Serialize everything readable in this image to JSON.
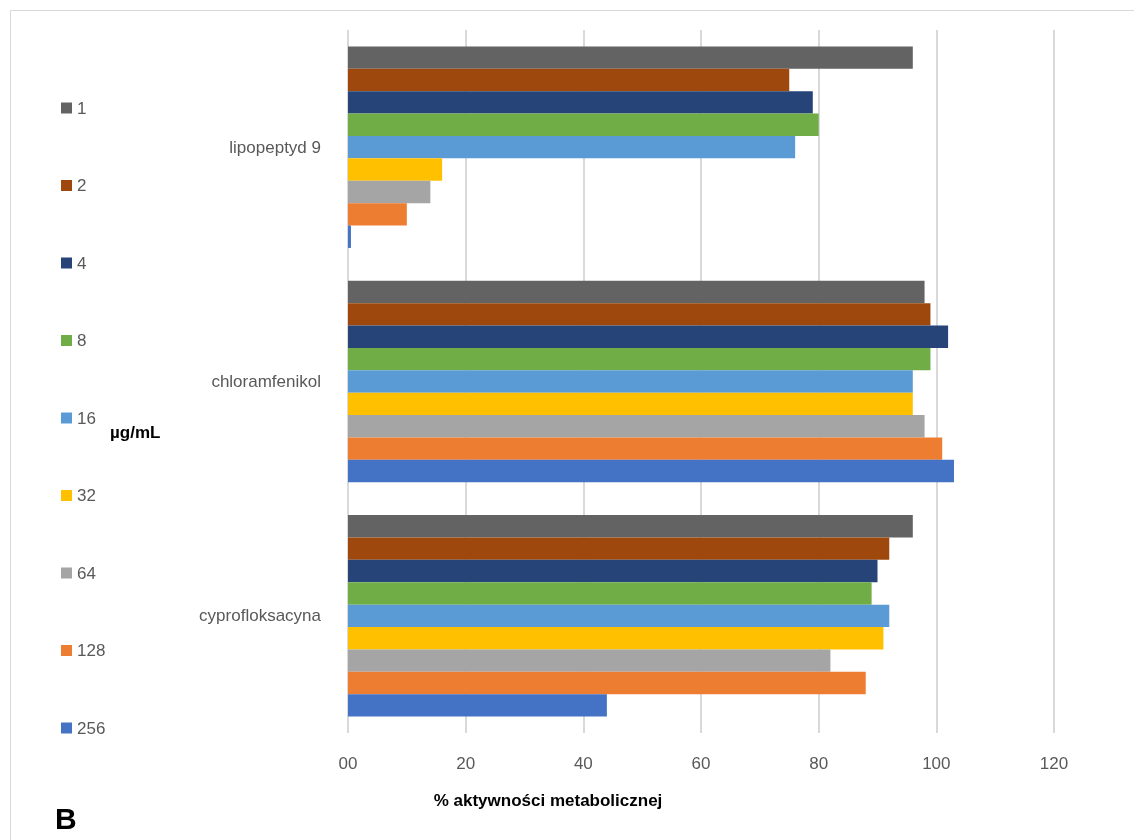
{
  "chart_data": {
    "type": "bar",
    "orientation": "horizontal",
    "categories": [
      "lipopeptyd 9",
      "chloramfenikol",
      "cyprofloksacyna"
    ],
    "series": [
      {
        "name": "1",
        "color": "#636363",
        "values": [
          96,
          98,
          96
        ]
      },
      {
        "name": "2",
        "color": "#9e480e",
        "values": [
          75,
          99,
          92
        ]
      },
      {
        "name": "4",
        "color": "#264478",
        "values": [
          79,
          102,
          90
        ]
      },
      {
        "name": "8",
        "color": "#70ad47",
        "values": [
          80,
          99,
          89
        ]
      },
      {
        "name": "16",
        "color": "#5b9bd5",
        "values": [
          76,
          96,
          92
        ]
      },
      {
        "name": "32",
        "color": "#ffc000",
        "values": [
          16,
          96,
          91
        ]
      },
      {
        "name": "64",
        "color": "#a5a5a5",
        "values": [
          14,
          98,
          82
        ]
      },
      {
        "name": "128",
        "color": "#ed7d31",
        "values": [
          10,
          101,
          88
        ]
      },
      {
        "name": "256",
        "color": "#4472c4",
        "values": [
          0.5,
          103,
          44
        ]
      }
    ],
    "xlim": [
      0,
      120
    ],
    "xticks": [
      {
        "value": 0,
        "label": "00"
      },
      20,
      40,
      60,
      80,
      100,
      120
    ],
    "xlabel": "% aktywności metabolicznej",
    "legend_title": "µg/mL",
    "legend": "left",
    "grid": "x",
    "annotations": [
      "B"
    ]
  }
}
